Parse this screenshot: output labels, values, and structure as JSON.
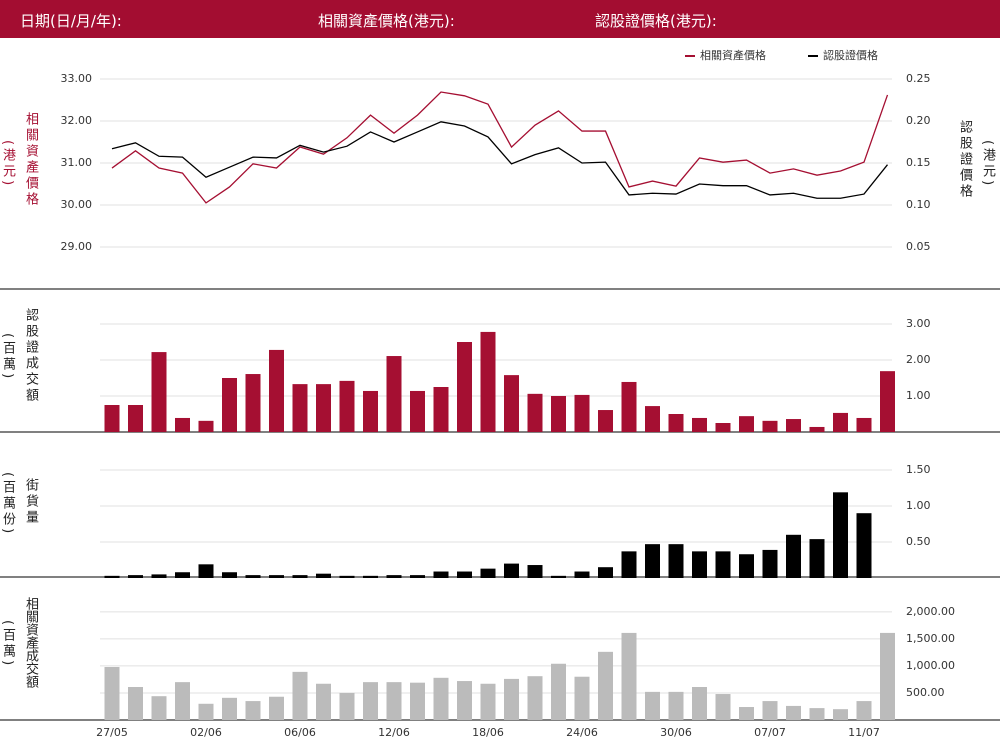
{
  "header": {
    "date_label": "日期(日/月/年):",
    "underlying_label": "相關資產價格(港元):",
    "warrant_label": "認股證價格(港元):"
  },
  "chart_data": [
    {
      "type": "line",
      "y_label": "相關資產價格",
      "y_unit": "(港元)",
      "y2_label": "認股證價格",
      "y2_unit": "(港元)",
      "ylim": [
        28.5,
        33.5
      ],
      "yticks": [
        {
          "value": 29,
          "label": "29.00"
        },
        {
          "value": 30,
          "label": "30.00"
        },
        {
          "value": 31,
          "label": "31.00"
        },
        {
          "value": 32,
          "label": "32.00"
        },
        {
          "value": 33,
          "label": "33.00"
        }
      ],
      "y2lim": [
        0.025,
        0.275
      ],
      "y2ticks": [
        {
          "value": 0.05,
          "label": "0.05"
        },
        {
          "value": 0.1,
          "label": "0.10"
        },
        {
          "value": 0.15,
          "label": "0.15"
        },
        {
          "value": 0.2,
          "label": "0.20"
        },
        {
          "value": 0.25,
          "label": "0.25"
        }
      ],
      "grid": true,
      "legend": "upper right",
      "series": [
        {
          "name": "相關資產價格",
          "color": "#a50f32",
          "values": [
            30.88,
            31.29,
            30.88,
            30.76,
            30.05,
            30.43,
            30.98,
            30.88,
            31.38,
            31.21,
            31.6,
            32.14,
            31.71,
            32.14,
            32.69,
            32.6,
            32.4,
            31.38,
            31.9,
            32.24,
            31.76,
            31.76,
            30.43,
            30.57,
            30.45,
            31.12,
            31.02,
            31.07,
            30.76,
            30.86,
            30.71,
            30.81,
            31.02,
            32.62
          ]
        },
        {
          "name": "認股證價格",
          "color": "#000000",
          "axis": "y2",
          "values": [
            0.167,
            0.174,
            0.158,
            0.157,
            0.133,
            0.145,
            0.157,
            0.156,
            0.171,
            0.163,
            0.17,
            0.187,
            0.175,
            0.187,
            0.199,
            0.194,
            0.181,
            0.149,
            0.16,
            0.168,
            0.15,
            0.151,
            0.112,
            0.114,
            0.113,
            0.125,
            0.123,
            0.123,
            0.112,
            0.114,
            0.108,
            0.108,
            0.113,
            0.148
          ]
        }
      ]
    },
    {
      "type": "bar",
      "y_label": "認股證成交額",
      "y_unit": "(百萬)",
      "color": "#a50f32",
      "ylim": [
        0,
        3.5
      ],
      "yticks": [
        {
          "value": 1,
          "label": "1.00"
        },
        {
          "value": 2,
          "label": "2.00"
        },
        {
          "value": 3,
          "label": "3.00"
        }
      ],
      "grid": true,
      "values": [
        0.75,
        0.75,
        2.22,
        0.39,
        0.31,
        1.5,
        1.61,
        2.28,
        1.33,
        1.33,
        1.42,
        1.14,
        2.11,
        1.14,
        1.25,
        2.5,
        2.78,
        1.58,
        1.06,
        1.0,
        1.03,
        0.61,
        1.39,
        0.72,
        0.5,
        0.39,
        0.25,
        0.44,
        0.31,
        0.36,
        0.14,
        0.53,
        0.39,
        1.69
      ]
    },
    {
      "type": "bar",
      "y_label": "街貨量",
      "y_unit": "(百萬份)",
      "color": "#000000",
      "ylim": [
        0,
        1.75
      ],
      "yticks": [
        {
          "value": 0.5,
          "label": "0.50"
        },
        {
          "value": 1,
          "label": "1.00"
        },
        {
          "value": 1.5,
          "label": "1.50"
        }
      ],
      "grid": true,
      "values": [
        0.03,
        0.04,
        0.05,
        0.08,
        0.19,
        0.08,
        0.04,
        0.04,
        0.04,
        0.06,
        0.03,
        0.03,
        0.04,
        0.04,
        0.09,
        0.09,
        0.13,
        0.2,
        0.18,
        0.03,
        0.09,
        0.15,
        0.37,
        0.47,
        0.47,
        0.37,
        0.37,
        0.33,
        0.39,
        0.6,
        0.54,
        1.19,
        0.9,
        null
      ]
    },
    {
      "type": "bar",
      "y_label": "相關資產成交額",
      "y_unit": "(百萬)",
      "color": "#bbbbbb",
      "ylim": [
        0,
        2200
      ],
      "yticks": [
        {
          "value": 500,
          "label": "500.00"
        },
        {
          "value": 1000,
          "label": "1,000.00"
        },
        {
          "value": 1500,
          "label": "1,500.00"
        },
        {
          "value": 2000,
          "label": "2,000.00"
        }
      ],
      "grid": true,
      "categories": [
        "27/05",
        null,
        null,
        null,
        "02/06",
        null,
        null,
        null,
        "06/06",
        null,
        null,
        null,
        "12/06",
        null,
        null,
        null,
        "18/06",
        null,
        null,
        null,
        "24/06",
        null,
        null,
        null,
        "30/06",
        null,
        null,
        null,
        "07/07",
        null,
        null,
        null,
        "11/07",
        null
      ],
      "values": [
        980,
        610,
        440,
        700,
        300,
        410,
        350,
        430,
        890,
        670,
        500,
        700,
        700,
        690,
        780,
        720,
        670,
        760,
        810,
        1040,
        800,
        1260,
        1610,
        520,
        520,
        610,
        480,
        240,
        350,
        260,
        220,
        200,
        350,
        1610
      ]
    }
  ]
}
